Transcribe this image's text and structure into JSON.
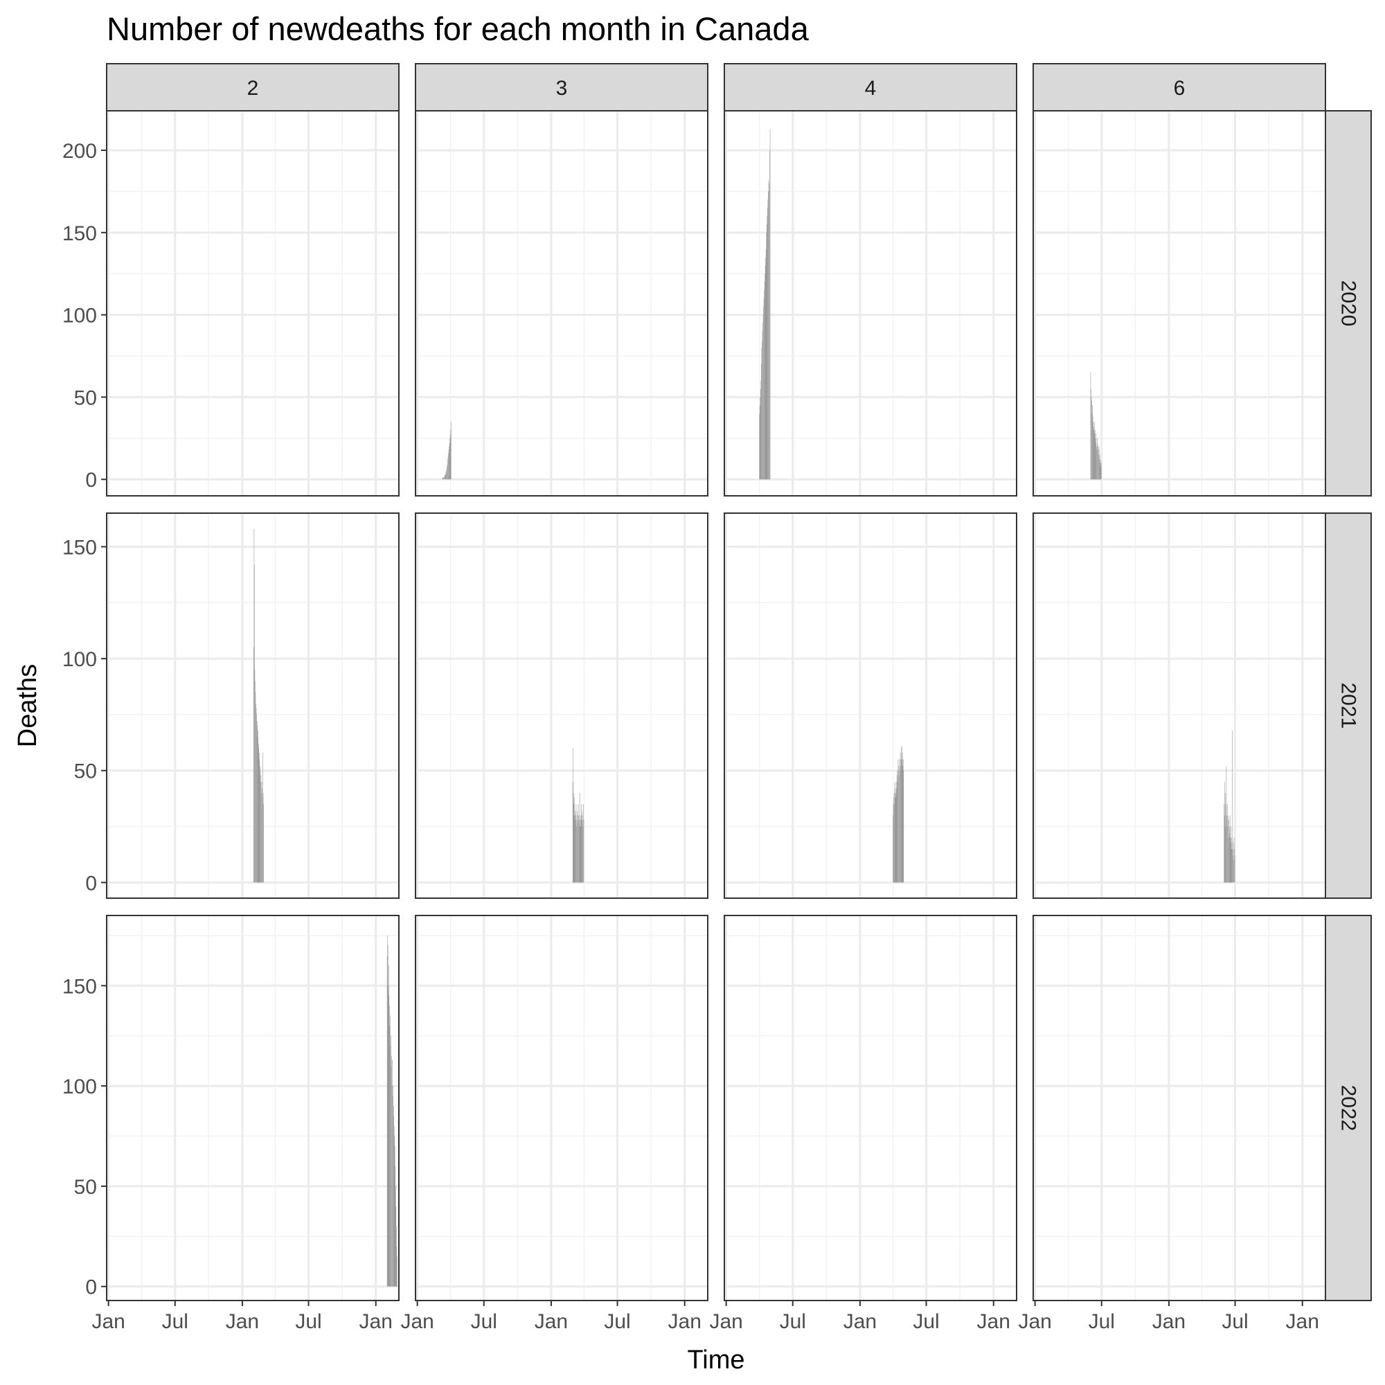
{
  "chart_data": {
    "type": "bar",
    "title": "Number of newdeaths for each month in Canada",
    "xlabel": "Time",
    "ylabel": "Deaths",
    "facet_columns": [
      "2",
      "3",
      "4",
      "6"
    ],
    "facet_rows": [
      "2020",
      "2021",
      "2022"
    ],
    "x_tick_labels": [
      "Jan",
      "Jul",
      "Jan",
      "Jul",
      "Jan"
    ],
    "x_tick_dates": [
      "2020-01-01",
      "2020-07-01",
      "2021-01-01",
      "2021-07-01",
      "2022-01-01"
    ],
    "xlim": [
      "2019-12-27",
      "2022-03-05"
    ],
    "ylim_by_row": [
      [
        -10,
        224
      ],
      [
        -7,
        165
      ],
      [
        -7,
        185
      ]
    ],
    "y_ticks_by_row": [
      [
        0,
        50,
        100,
        150,
        200
      ],
      [
        0,
        50,
        100,
        150
      ],
      [
        0,
        50,
        100,
        150
      ]
    ],
    "bar_color": "#999999",
    "panels": [
      {
        "year": "2020",
        "month": "3",
        "start": "2020-03-09",
        "values": [
          1,
          0,
          1,
          1,
          1,
          2,
          0,
          3,
          2,
          3,
          5,
          4,
          6,
          8,
          9,
          12,
          14,
          16,
          18,
          20,
          22,
          25,
          27,
          30,
          35
        ]
      },
      {
        "year": "2020",
        "month": "4",
        "start": "2020-04-01",
        "values": [
          40,
          45,
          50,
          55,
          60,
          70,
          80,
          84,
          90,
          95,
          100,
          105,
          110,
          115,
          120,
          125,
          130,
          135,
          140,
          150,
          155,
          160,
          165,
          170,
          175,
          182,
          175,
          180,
          200,
          213
        ]
      },
      {
        "year": "2020",
        "month": "6",
        "start": "2020-06-01",
        "values": [
          65,
          55,
          50,
          48,
          40,
          45,
          38,
          35,
          30,
          32,
          28,
          35,
          30,
          25,
          22,
          28,
          20,
          18,
          25,
          22,
          20,
          15,
          18,
          20,
          12,
          15,
          10,
          12,
          8,
          10
        ]
      },
      {
        "year": "2021",
        "month": "2",
        "start": "2021-02-01",
        "values": [
          105,
          158,
          142,
          95,
          90,
          85,
          80,
          78,
          75,
          70,
          72,
          65,
          68,
          60,
          62,
          55,
          58,
          50,
          52,
          45,
          48,
          40,
          45,
          42,
          38,
          58,
          40,
          35
        ]
      },
      {
        "year": "2021",
        "month": "3",
        "start": "2021-03-01",
        "values": [
          45,
          60,
          40,
          35,
          38,
          30,
          32,
          28,
          30,
          35,
          25,
          28,
          32,
          30,
          27,
          35,
          30,
          25,
          28,
          40,
          30,
          25,
          28,
          30,
          35,
          32,
          28,
          25,
          30,
          35,
          28
        ]
      },
      {
        "year": "2021",
        "month": "4",
        "start": "2021-04-01",
        "values": [
          30,
          35,
          38,
          40,
          35,
          45,
          42,
          38,
          40,
          45,
          42,
          48,
          50,
          45,
          55,
          50,
          52,
          48,
          55,
          50,
          58,
          52,
          55,
          60,
          61,
          55,
          58,
          52,
          55,
          50
        ]
      },
      {
        "year": "2021",
        "month": "6",
        "start": "2021-06-01",
        "values": [
          35,
          45,
          30,
          40,
          25,
          35,
          52,
          30,
          28,
          35,
          25,
          30,
          20,
          28,
          22,
          25,
          30,
          20,
          18,
          25,
          15,
          20,
          68,
          15,
          12,
          18,
          10,
          20,
          15,
          12
        ]
      },
      {
        "year": "2022",
        "month": "2",
        "start": "2022-02-01",
        "values": [
          165,
          175,
          170,
          150,
          160,
          145,
          140,
          130,
          135,
          120,
          125,
          110,
          115,
          100,
          113,
          95,
          100,
          85,
          90,
          80,
          75,
          70,
          60,
          50,
          40,
          30,
          20,
          15
        ]
      }
    ]
  }
}
